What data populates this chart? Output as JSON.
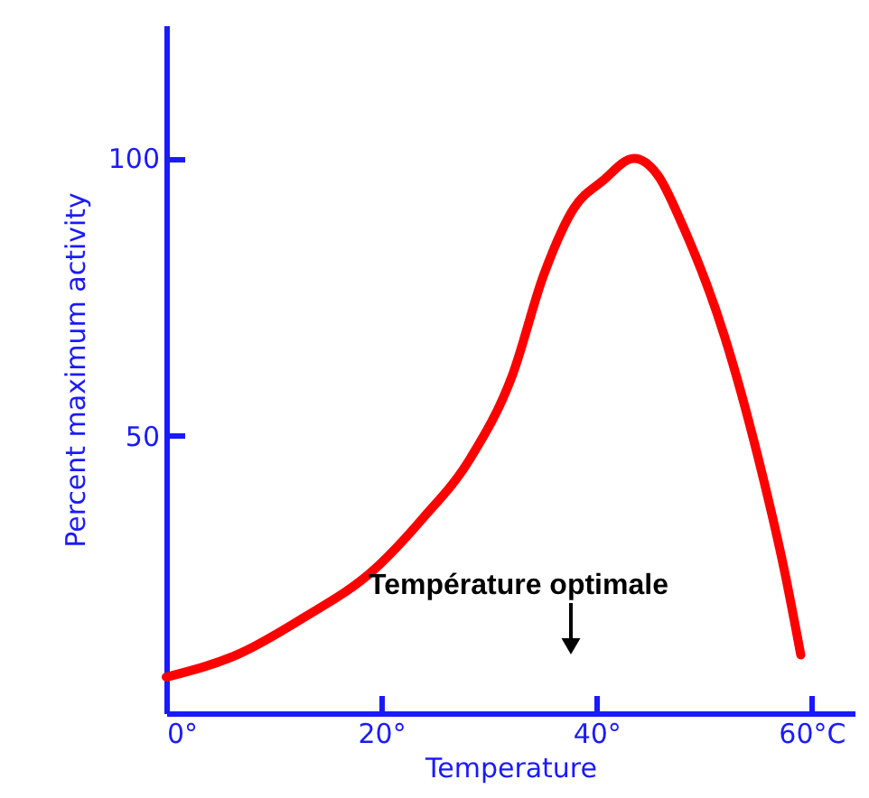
{
  "chart_data": {
    "type": "line",
    "xlabel": "Temperature",
    "ylabel": "Percent maximum activity",
    "x": [
      0,
      6.9,
      12.6,
      19.4,
      23.8,
      28.3,
      32.2,
      35.1,
      37.9,
      40.6,
      43.5,
      45.7,
      48,
      51.9,
      55.3,
      57.5,
      59
    ],
    "series": [
      {
        "color": "#ff0000",
        "values": [
          6.5,
          10.8,
          17,
          26,
          35,
          46,
          61,
          79,
          91,
          96,
          100,
          97,
          88,
          68,
          44,
          25.5,
          10.5
        ]
      }
    ],
    "xlim": [
      0,
      64
    ],
    "ylim": [
      0,
      124
    ],
    "xticks": [
      {
        "value": 0,
        "label": "0°"
      },
      {
        "value": 20,
        "label": "20°"
      },
      {
        "value": 40,
        "label": "40°"
      },
      {
        "value": 60,
        "label": "60°C"
      }
    ],
    "yticks": [
      50,
      100
    ],
    "annotations": [
      "Température optimale"
    ],
    "grid": false,
    "marker": "none",
    "line_style": "solid"
  }
}
